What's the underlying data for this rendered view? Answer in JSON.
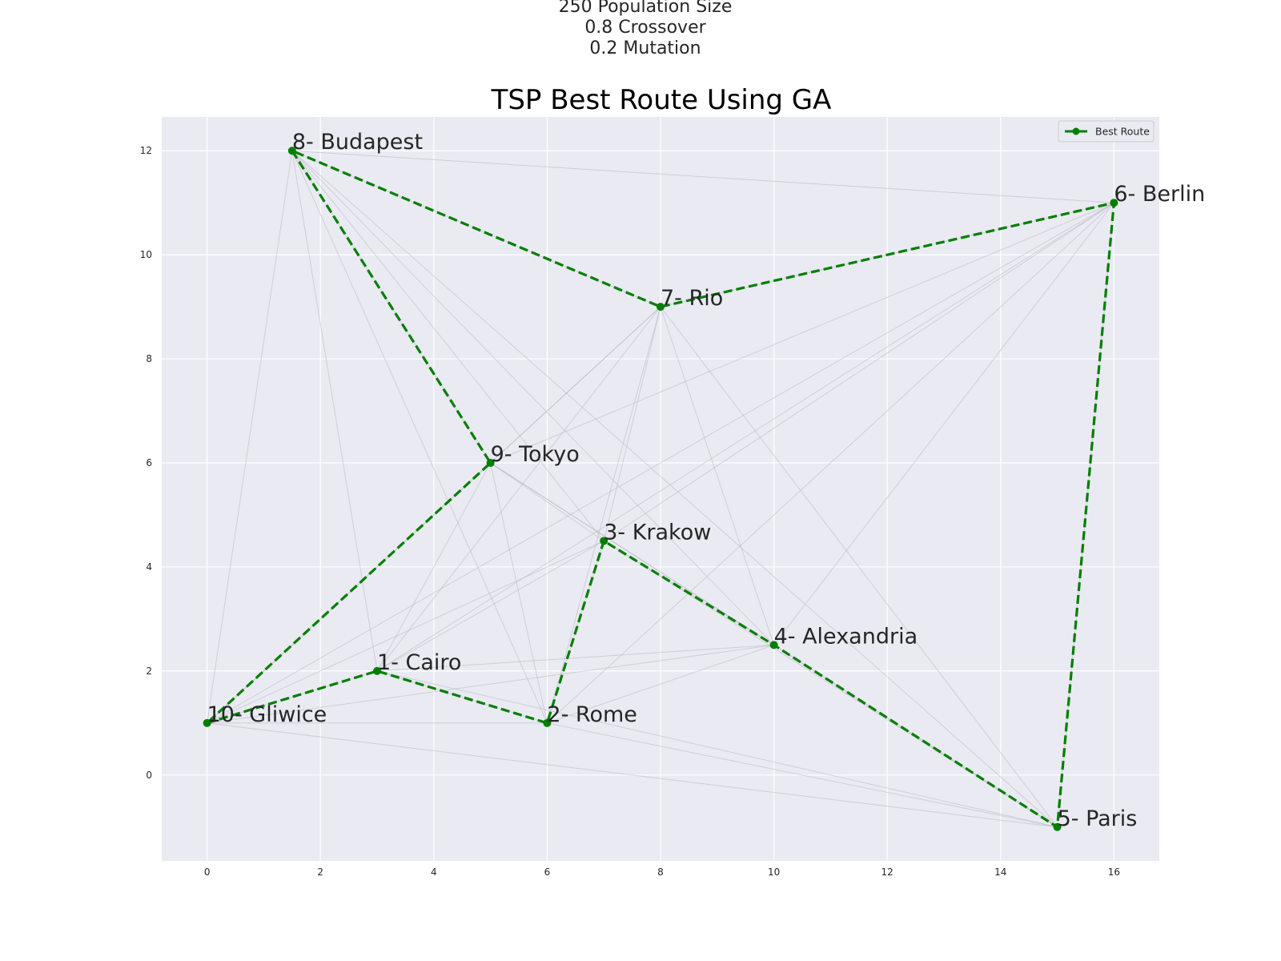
{
  "suptitle": {
    "line1": "250 Population Size",
    "line2": "0.8 Crossover",
    "line3": "0.2 Mutation"
  },
  "chart_data": {
    "type": "line",
    "title": "TSP Best Route Using GA",
    "xlabel": "",
    "ylabel": "",
    "xlim": [
      -0.8,
      16.8
    ],
    "ylim": [
      -1.65,
      12.65
    ],
    "xticks": [
      0,
      2,
      4,
      6,
      8,
      10,
      12,
      14,
      16
    ],
    "yticks": [
      0,
      2,
      4,
      6,
      8,
      10,
      12
    ],
    "grid": true,
    "legend": {
      "position": "top-right",
      "entries": [
        "Best Route"
      ]
    },
    "colors": {
      "route": "#007f00",
      "edges": "#b8b8c0",
      "background": "#eaeaf2",
      "grid": "#ffffff"
    },
    "cities": [
      {
        "label": "1- Cairo",
        "x": 3,
        "y": 2
      },
      {
        "label": "2- Rome",
        "x": 6,
        "y": 1
      },
      {
        "label": "3- Krakow",
        "x": 7,
        "y": 4.5
      },
      {
        "label": "4- Alexandria",
        "x": 10,
        "y": 2.5
      },
      {
        "label": "5- Paris",
        "x": 15,
        "y": -1
      },
      {
        "label": "6- Berlin",
        "x": 16,
        "y": 11
      },
      {
        "label": "7- Rio",
        "x": 8,
        "y": 9
      },
      {
        "label": "8- Budapest",
        "x": 1.5,
        "y": 12
      },
      {
        "label": "9- Tokyo",
        "x": 5,
        "y": 6
      },
      {
        "label": "10- Gliwice",
        "x": 0,
        "y": 1
      }
    ],
    "series": [
      {
        "name": "Best Route",
        "route": [
          "10- Gliwice",
          "1- Cairo",
          "2- Rome",
          "3- Krakow",
          "4- Alexandria",
          "5- Paris",
          "6- Berlin",
          "7- Rio",
          "8- Budapest",
          "9- Tokyo",
          "10- Gliwice"
        ]
      }
    ]
  }
}
